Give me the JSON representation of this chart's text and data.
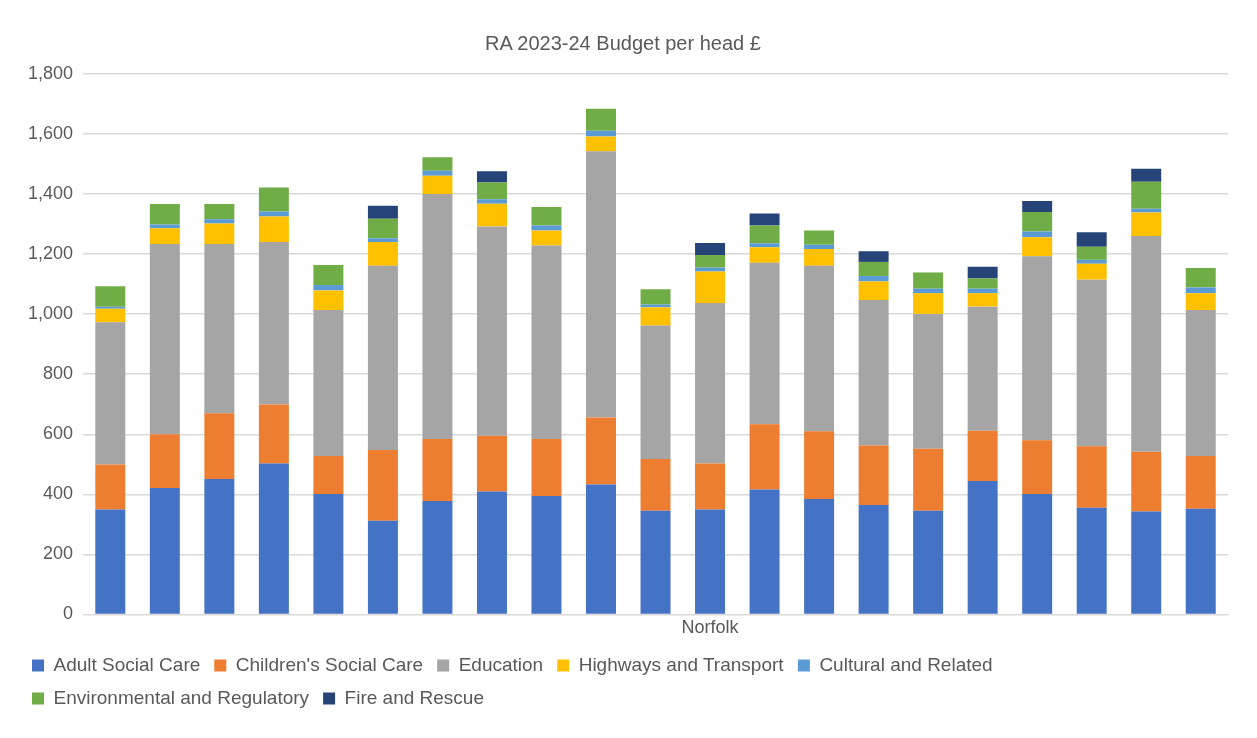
{
  "chart_data": {
    "type": "bar",
    "title": "RA 2023-24 Budget per head £",
    "stacked": true,
    "grid": "y",
    "legend": "bottom",
    "categories": [
      null,
      null,
      null,
      null,
      null,
      null,
      null,
      null,
      null,
      null,
      null,
      "Norfolk",
      null,
      null,
      null,
      null,
      null,
      null,
      null,
      null,
      null
    ],
    "ylim": [
      0,
      1800
    ],
    "yticks": [
      {
        "value": 0,
        "label": "0"
      },
      {
        "value": 200,
        "label": "200"
      },
      {
        "value": 400,
        "label": "400"
      },
      {
        "value": 600,
        "label": "600"
      },
      {
        "value": 800,
        "label": "800"
      },
      {
        "value": 1000,
        "label": "1,000"
      },
      {
        "value": 1200,
        "label": "1,200"
      },
      {
        "value": 1400,
        "label": "1,400"
      },
      {
        "value": 1600,
        "label": "1,600"
      },
      {
        "value": 1800,
        "label": "1,800"
      }
    ],
    "series": [
      {
        "name": "Adult Social Care",
        "color": "#4472c4",
        "values": [
          349,
          421,
          451,
          503,
          401,
          312,
          378,
          409,
          394,
          433,
          345,
          349,
          416,
          384,
          364,
          345,
          444,
          401,
          355,
          343,
          352
        ]
      },
      {
        "name": "Children's Social Care",
        "color": "#ed7d31",
        "values": [
          150,
          179,
          219,
          196,
          127,
          236,
          206,
          186,
          190,
          223,
          173,
          154,
          217,
          226,
          199,
          207,
          168,
          179,
          205,
          199,
          176
        ]
      },
      {
        "name": "Education",
        "color": "#a5a5a5",
        "values": [
          474,
          634,
          564,
          541,
          486,
          613,
          816,
          697,
          645,
          887,
          444,
          534,
          538,
          551,
          484,
          449,
          413,
          613,
          555,
          718,
          486
        ]
      },
      {
        "name": "Highways and Transport",
        "color": "#ffc000",
        "values": [
          45,
          52,
          68,
          85,
          65,
          79,
          61,
          76,
          50,
          49,
          61,
          105,
          52,
          56,
          62,
          69,
          45,
          63,
          53,
          79,
          56
        ]
      },
      {
        "name": "Cultural and Related",
        "color": "#5b9bd5",
        "values": [
          7,
          13,
          14,
          17,
          18,
          13,
          17,
          15,
          16,
          19,
          9,
          13,
          13,
          14,
          18,
          15,
          15,
          19,
          13,
          12,
          19
        ]
      },
      {
        "name": "Environmental and Regulatory",
        "color": "#70ad47",
        "values": [
          68,
          68,
          51,
          80,
          67,
          65,
          45,
          56,
          62,
          73,
          51,
          42,
          59,
          48,
          47,
          54,
          34,
          65,
          44,
          90,
          65
        ]
      },
      {
        "name": "Fire and Rescue",
        "color": "#264478",
        "values": [
          0,
          0,
          0,
          0,
          0,
          43,
          0,
          37,
          0,
          0,
          0,
          40,
          40,
          0,
          36,
          0,
          39,
          37,
          48,
          43,
          0
        ]
      }
    ]
  }
}
